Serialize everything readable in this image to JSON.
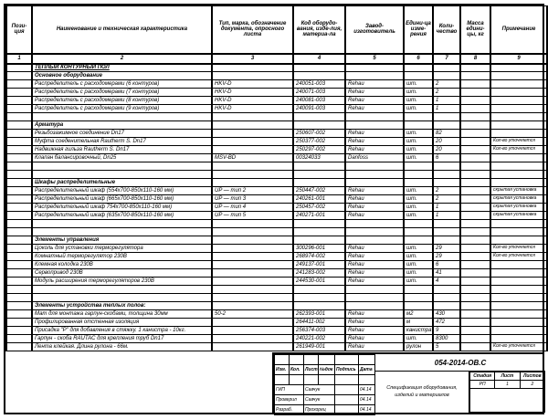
{
  "table": {
    "columns": [
      {
        "num": "1",
        "label": "Пози-ция"
      },
      {
        "num": "2",
        "label": "Наименование и техническая характеристика"
      },
      {
        "num": "3",
        "label": "Тип, марка, обозначение документа, опросного листа"
      },
      {
        "num": "4",
        "label": "Код оборудо-вания, изде-лия, материа-ла"
      },
      {
        "num": "5",
        "label": "Завод-изготовитель"
      },
      {
        "num": "6",
        "label": "Едини-ца изме-рения"
      },
      {
        "num": "7",
        "label": "Коли-чество"
      },
      {
        "num": "8",
        "label": "Масса едини-цы, кг"
      },
      {
        "num": "9",
        "label": "Примечание"
      }
    ],
    "rows": [
      {
        "style": "title",
        "name": "ТЕПЛЫЙ КОНТУРНЫЙ ПОЛ"
      },
      {
        "style": "section",
        "name": "Основное оборудование"
      },
      {
        "style": "item",
        "name": "Распределитель с расходомерами (6 контуров)",
        "type": "HKV-D",
        "code": "240051-003",
        "manuf": "Rehau",
        "unit": "шт.",
        "qty": "2"
      },
      {
        "style": "item",
        "name": "Распределитель с расходомерами (7 контуров)",
        "type": "HKV-D",
        "code": "240071-003",
        "manuf": "Rehau",
        "unit": "шт.",
        "qty": "2"
      },
      {
        "style": "item",
        "name": "Распределитель с расходомерами (8 контуров)",
        "type": "HKV-D",
        "code": "240081-003",
        "manuf": "Rehau",
        "unit": "шт.",
        "qty": "1"
      },
      {
        "style": "item",
        "name": "Распределитель с расходомерами (9 контуров)",
        "type": "HKV-D",
        "code": "240091-003",
        "manuf": "Rehau",
        "unit": "шт.",
        "qty": "1"
      },
      {
        "style": "blank"
      },
      {
        "style": "section",
        "name": "Арматура"
      },
      {
        "style": "item",
        "name": "Резьбозажимное соединение Dn17",
        "code": "250607-002",
        "manuf": "Rehau",
        "unit": "шт.",
        "qty": "82"
      },
      {
        "style": "item",
        "name": "Муфта соеденительная Rautherm S. Dn17",
        "code": "250377-002",
        "manuf": "Rehau",
        "unit": "шт.",
        "qty": "20",
        "note": "Кол-во уточняется"
      },
      {
        "style": "item",
        "name": "Надвижная гильза Rautherm S. Dn17",
        "code": "250297-002",
        "manuf": "Rehau",
        "unit": "шт.",
        "qty": "20",
        "note": "Кол-во уточняется"
      },
      {
        "style": "item",
        "name": "Клапан балансировочный, Dn25",
        "type": "MSV-BD",
        "code": "00324033",
        "manuf": "Danfoss",
        "unit": "шт.",
        "qty": "6"
      },
      {
        "style": "blank"
      },
      {
        "style": "blank"
      },
      {
        "style": "section",
        "name": "Шкафы распределительные"
      },
      {
        "style": "item",
        "name": "Распределительный шкаф (554х700-850х110-160 мм)",
        "type": "UP — тип 2",
        "code": "250447-002",
        "manuf": "Rehau",
        "unit": "шт.",
        "qty": "2",
        "note": "скрытая установка"
      },
      {
        "style": "item",
        "name": "Распределительный шкаф (665х700-850х110-160 мм)",
        "type": "UP — тип 3",
        "code": "240261-001",
        "manuf": "Rehau",
        "unit": "шт.",
        "qty": "2",
        "note": "скрытая установка"
      },
      {
        "style": "item",
        "name": "Распределительный шкаф 754х700-850х110-160 мм)",
        "type": "UP — тип 4",
        "code": "250457-002",
        "manuf": "Rehau",
        "unit": "шт.",
        "qty": "1",
        "note": "скрытая установка"
      },
      {
        "style": "item",
        "name": "Распределительный шкаф (635х700-850х110-160 мм)",
        "type": "UP — тип 5",
        "code": "240271-001",
        "manuf": "Rehau",
        "unit": "шт.",
        "qty": "1",
        "note": "скрытая установка"
      },
      {
        "style": "blank"
      },
      {
        "style": "blank"
      },
      {
        "style": "section",
        "name": "Элементы управления"
      },
      {
        "style": "item",
        "name": "Цоколь для установки терморегулятора",
        "code": "300296-001",
        "manuf": "Rehau",
        "unit": "шт.",
        "qty": "29",
        "note": "Кол-во уточняется"
      },
      {
        "style": "item",
        "name": "Комнатный терморегулятор 230В",
        "code": "268974-002",
        "manuf": "Rehau",
        "unit": "шт.",
        "qty": "29",
        "note": "Кол-во уточняется"
      },
      {
        "style": "item",
        "name": "Клемная колодка 230В",
        "code": "249137-001",
        "manuf": "Rehau",
        "unit": "шт.",
        "qty": "6"
      },
      {
        "style": "item",
        "name": "Сервопривод 230В",
        "code": "241283-002",
        "manuf": "Rehau",
        "unit": "шт.",
        "qty": "41"
      },
      {
        "style": "item",
        "name": "Модуль расширения терморегуляторов 230В",
        "code": "244530-001",
        "manuf": "Rehau",
        "unit": "шт.",
        "qty": "4"
      },
      {
        "style": "blank"
      },
      {
        "style": "blank"
      },
      {
        "style": "section",
        "name": "Элементы устройства теплых полов:"
      },
      {
        "style": "item",
        "name": "Мат для монтажа гарпун-скобами, толщина 30мм",
        "type": "50-2",
        "code": "262393-001",
        "manuf": "Rehau",
        "unit": "м2",
        "qty": "430"
      },
      {
        "style": "item",
        "name": "Профилированная отстенная изоляция",
        "code": "264411-002",
        "manuf": "Rehau",
        "unit": "м",
        "qty": "472"
      },
      {
        "style": "item",
        "name": "Присадка \"P\" для добавления в стяжку. 1 канистра - 10кг.",
        "code": "256374-003",
        "manuf": "Rehau",
        "unit": "канистра",
        "qty": "9"
      },
      {
        "style": "item",
        "name": "Гарпун - скоба RAUTAC для крепления труб Dn17",
        "code": "240221-002",
        "manuf": "Rehau",
        "unit": "шт.",
        "qty": "8300"
      },
      {
        "style": "item",
        "name": "Лента клейкая. Длина рулона - 66м.",
        "code": "261949-001",
        "manuf": "Rehau",
        "unit": "рулон",
        "qty": "5",
        "note": "Кол-во уточняется"
      }
    ]
  },
  "stamp": {
    "doc_number": "054-2014-ОВ.С",
    "header_cells": [
      "Изм.",
      "Кол.",
      "Лист",
      "№док",
      "Подпись",
      "Дата"
    ],
    "signature_rows": [
      {
        "role": "ГИП",
        "name": "Савчук",
        "sign": "",
        "date": "04.14"
      },
      {
        "role": "Проверил",
        "name": "Савчук",
        "sign": "",
        "date": "04.14"
      },
      {
        "role": "Разраб.",
        "name": "Прохорец",
        "sign": "",
        "date": "04.14"
      }
    ],
    "title": "Спецификация оборудования, изделий и материалов",
    "stage_header": [
      "Стадия",
      "Лист",
      "Листов"
    ],
    "stage_values": [
      "РП",
      "1",
      "2"
    ]
  }
}
